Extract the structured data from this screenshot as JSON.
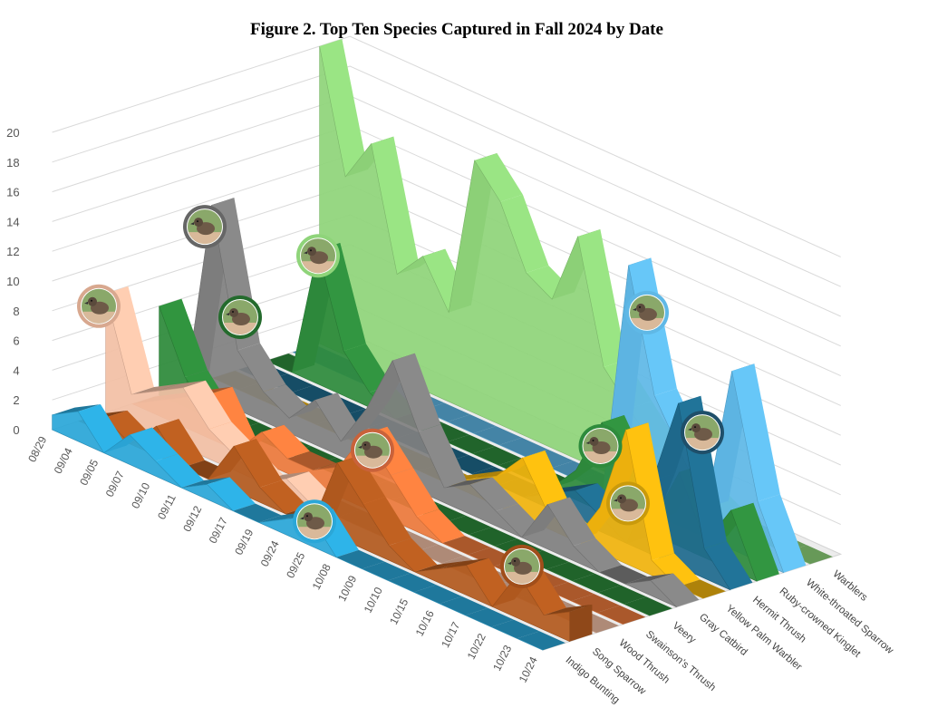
{
  "chart_data": {
    "type": "area",
    "style": "3d-ribbon",
    "title": "Figure 2. Top Ten Species Captured in Fall 2024 by Date",
    "xlabel": "",
    "ylabel": "",
    "ylim": [
      0,
      20
    ],
    "yticks": [
      "0",
      "2",
      "4",
      "6",
      "8",
      "10",
      "12",
      "14",
      "16",
      "18",
      "20"
    ],
    "grid": true,
    "x": [
      "08/29",
      "09/04",
      "09/05",
      "09/07",
      "09/10",
      "09/11",
      "09/12",
      "09/17",
      "09/19",
      "09/24",
      "09/25",
      "10/08",
      "10/09",
      "10/10",
      "10/15",
      "10/16",
      "10/17",
      "10/22",
      "10/23",
      "10/24"
    ],
    "series": [
      {
        "name": "Indigo Bunting",
        "color": "#2ba7d8",
        "values": [
          1,
          2,
          0,
          2,
          1,
          0,
          1,
          0,
          0,
          1,
          2,
          0,
          0,
          0,
          0,
          0,
          0,
          0,
          0,
          0
        ]
      },
      {
        "name": "Song Sparrow",
        "color": "#b35a1f",
        "values": [
          0,
          1,
          0,
          2,
          0,
          0,
          3,
          1,
          0,
          0,
          5,
          3,
          1,
          0,
          1,
          2,
          0,
          3,
          1,
          2
        ]
      },
      {
        "name": "Wood Thrush",
        "color": "#f2bfa5",
        "values": [
          8,
          2,
          3,
          4,
          2,
          1,
          0,
          1,
          0,
          0,
          0,
          0,
          0,
          0,
          0,
          0,
          0,
          0,
          0,
          0
        ]
      },
      {
        "name": "Swainson's Thrush",
        "color": "#ec7a3c",
        "values": [
          0,
          1,
          2,
          3,
          0,
          2,
          1,
          1,
          2,
          5,
          3,
          1,
          0,
          0,
          0,
          0,
          0,
          0,
          0,
          0
        ]
      },
      {
        "name": "Veery",
        "color": "#2d8a3a",
        "values": [
          6,
          2,
          0,
          0,
          0,
          0,
          0,
          0,
          0,
          0,
          0,
          0,
          0,
          0,
          0,
          0,
          0,
          0,
          0,
          0
        ]
      },
      {
        "name": "Gray Catbird",
        "color": "#808080",
        "values": [
          0,
          13,
          4,
          2,
          1,
          3,
          1,
          4,
          8,
          4,
          1,
          2,
          1,
          0,
          3,
          1,
          0,
          0,
          1,
          0
        ]
      },
      {
        "name": "Yellow Palm Warbler",
        "color": "#f1b40e",
        "values": [
          0,
          0,
          0,
          0,
          0,
          0,
          0,
          0,
          0,
          0,
          1,
          2,
          4,
          1,
          0,
          3,
          9,
          1,
          0,
          0
        ]
      },
      {
        "name": "Hermit Thrush",
        "color": "#1f6b8e",
        "values": [
          0,
          0,
          0,
          0,
          0,
          0,
          0,
          0,
          0,
          0,
          0,
          0,
          1,
          2,
          1,
          0,
          5,
          11,
          2,
          0
        ]
      },
      {
        "name": "Ruby-crowned Kinglet",
        "color": "#2e8b3c",
        "values": [
          0,
          0,
          9,
          3,
          1,
          0,
          0,
          0,
          0,
          0,
          0,
          0,
          2,
          6,
          3,
          1,
          5,
          1,
          4,
          0
        ]
      },
      {
        "name": "White-throated Sparrow",
        "color": "#5fb8e6",
        "values": [
          0,
          0,
          0,
          0,
          0,
          0,
          0,
          0,
          0,
          0,
          0,
          0,
          0,
          16,
          8,
          5,
          2,
          12,
          4,
          0
        ]
      },
      {
        "name": "Warblers",
        "color": "#8fd47a",
        "values": [
          20,
          12,
          15,
          7,
          9,
          6,
          17,
          15,
          11,
          10,
          15,
          7,
          5,
          3,
          2,
          1,
          0,
          0,
          0,
          0
        ]
      }
    ]
  }
}
